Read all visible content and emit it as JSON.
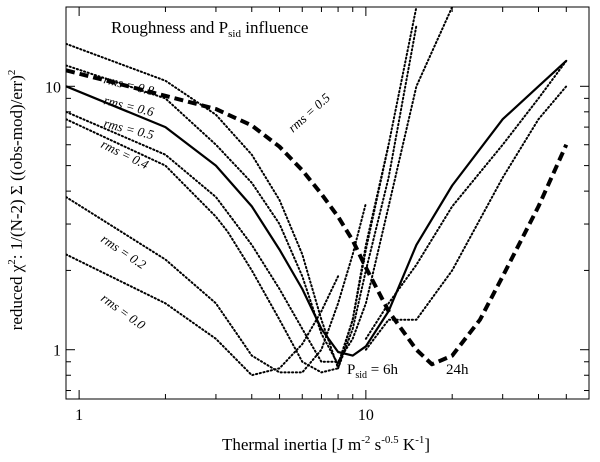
{
  "chart_data": {
    "type": "line",
    "title": "Roughness and P",
    "title_sub": "sid",
    "title_tail": " influence",
    "xlabel": {
      "main": "Thermal inertia [J m",
      "exp1": "-2",
      "mid1": " s",
      "exp2": "-0.5",
      "mid2": " K",
      "exp3": "-1",
      "tail": "]"
    },
    "ylabel": {
      "pre": "reduced ",
      "chi": "χ",
      "sup": "2",
      "tail": ": 1/(N-2) Σ ((obs-mod)/err)",
      "sup2": "2"
    },
    "x_scale": "log",
    "y_scale": "log",
    "xlim": [
      0.9,
      60
    ],
    "ylim": [
      0.65,
      20
    ],
    "x_ticks": [
      {
        "v": 1,
        "label": "1"
      },
      {
        "v": 10,
        "label": "10"
      }
    ],
    "y_ticks": [
      {
        "v": 1,
        "label": "1"
      },
      {
        "v": 10,
        "label": "10"
      }
    ],
    "grid": false,
    "series": [
      {
        "id": "rms08",
        "style": "dotted",
        "label": "rms = 0.8",
        "x": [
          0.9,
          2,
          3,
          4,
          5,
          6,
          7,
          8,
          9,
          10,
          12,
          15
        ],
        "y": [
          14.5,
          10.5,
          7.8,
          5.5,
          3.7,
          2.3,
          1.3,
          0.85,
          1.2,
          2.0,
          4.5,
          17
        ]
      },
      {
        "id": "rms06",
        "style": "dotted",
        "label": "rms = 0.6",
        "x": [
          0.9,
          2,
          3,
          4,
          5,
          6,
          7,
          8,
          9,
          10,
          12,
          15
        ],
        "y": [
          12,
          9,
          6,
          4.3,
          3.0,
          1.9,
          1.15,
          0.88,
          1.3,
          2.5,
          6,
          20
        ]
      },
      {
        "id": "rms05",
        "style": "solid",
        "label": "rms = 0.5",
        "x": [
          0.9,
          2,
          3,
          4,
          5,
          6,
          7,
          8,
          9,
          10,
          12,
          15,
          20,
          30,
          40,
          50
        ],
        "y": [
          10,
          7,
          5,
          3.5,
          2.4,
          1.7,
          1.2,
          0.98,
          0.95,
          1.03,
          1.4,
          2.5,
          4.2,
          7.5,
          10,
          12.5
        ]
      },
      {
        "id": "rms05b",
        "style": "dotted",
        "label": "",
        "x": [
          0.9,
          2,
          3,
          4,
          5,
          6,
          7,
          8,
          9,
          10,
          12,
          15,
          20
        ],
        "y": [
          8,
          5.5,
          3.8,
          2.5,
          1.7,
          1.2,
          0.9,
          0.9,
          1.1,
          1.5,
          3.5,
          10,
          20
        ]
      },
      {
        "id": "rms04",
        "style": "dotted",
        "label": "rms = 0.4",
        "x": [
          0.9,
          2,
          3,
          3.3,
          4,
          5,
          6,
          7,
          8,
          9,
          10,
          12
        ],
        "y": [
          7.5,
          5,
          3.2,
          2.8,
          2.0,
          1.3,
          0.9,
          0.82,
          0.85,
          1.3,
          2.4,
          6
        ]
      },
      {
        "id": "rms02",
        "style": "dotted",
        "label": "rms = 0.2",
        "x": [
          0.9,
          2,
          3,
          4,
          5,
          6,
          7,
          8,
          9,
          10
        ],
        "y": [
          3.8,
          2.2,
          1.5,
          0.95,
          0.82,
          0.82,
          1.0,
          1.5,
          2.3,
          3.6
        ]
      },
      {
        "id": "rms00",
        "style": "dotted",
        "label": "rms = 0.0",
        "x": [
          0.9,
          2,
          3,
          4,
          5,
          6,
          7,
          8
        ],
        "y": [
          2.3,
          1.5,
          1.1,
          0.8,
          0.85,
          1.05,
          1.4,
          1.9
        ]
      },
      {
        "id": "hi1",
        "style": "dotted",
        "label": "",
        "x": [
          10,
          12,
          15,
          20,
          30,
          40,
          50
        ],
        "y": [
          1.0,
          1.3,
          1.3,
          2.0,
          4.5,
          7.5,
          10
        ]
      },
      {
        "id": "hi2",
        "style": "dotted",
        "label": "",
        "x": [
          10,
          12,
          15,
          20,
          30,
          40,
          50
        ],
        "y": [
          1.1,
          1.5,
          2.1,
          3.5,
          6,
          9,
          12.5
        ]
      },
      {
        "id": "p24",
        "style": "dashed",
        "label": "rms = 0.5",
        "x": [
          0.9,
          2,
          3,
          4,
          5,
          6,
          7,
          8,
          9,
          10,
          12,
          15,
          17,
          20,
          25,
          30,
          40,
          50
        ],
        "y": [
          11.5,
          9.2,
          8.2,
          7.1,
          5.9,
          4.8,
          3.9,
          3.2,
          2.6,
          2.05,
          1.4,
          1.0,
          0.88,
          0.95,
          1.3,
          1.9,
          3.5,
          6
        ]
      }
    ],
    "annotations": [
      {
        "text": "P",
        "sub": "sid",
        "tail": " = 6h"
      },
      {
        "text": "24h"
      }
    ]
  }
}
